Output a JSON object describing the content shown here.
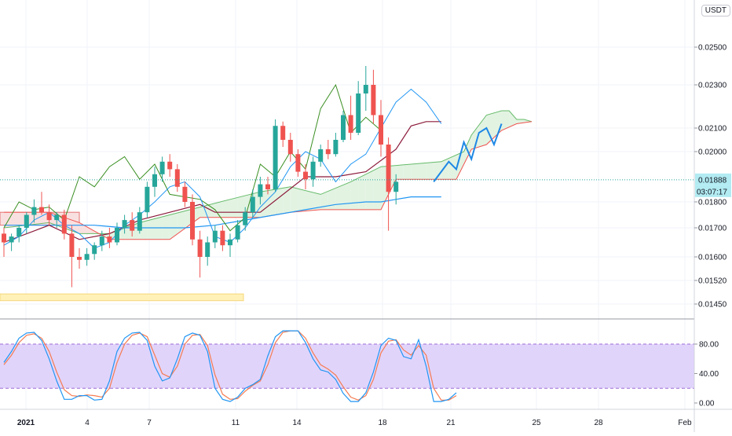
{
  "quote_currency": "USDT",
  "colors": {
    "up": "#26a69a",
    "down": "#ef5350",
    "ichimoku": "#3a8f22",
    "kijun": "#8b1a3a",
    "tenkan": "#2196f3",
    "ema": "#2196f3",
    "cloud_up": "#e2f3e2",
    "cloud_down": "#f9e0e0",
    "stoch_k": "#2196f3",
    "stoch_d": "#f57c52",
    "stoch_band": "#e1d4fb",
    "zone": "#fff1b8",
    "price_tag": "#b2ebf2"
  },
  "price_labels": {
    "current_price": "0.01888",
    "countdown": "03:07:17"
  },
  "chart_data": [
    {
      "type": "candlestick",
      "panel": "price",
      "y_axis": {
        "ticks": [
          "0.02500",
          "0.02300",
          "0.02100",
          "0.02000",
          "0.01800",
          "0.01700",
          "0.01600",
          "0.01520",
          "0.01450"
        ],
        "ylim": [
          0.0142,
          0.0268
        ]
      },
      "x_axis": {
        "ticks": [
          "2021",
          "4",
          "7",
          "11",
          "14",
          "18",
          "21",
          "25",
          "28",
          "Feb"
        ]
      },
      "grid": true,
      "series": [
        {
          "role": "tenkan-sen",
          "points": [
            [
              0,
              0.0164
            ],
            [
              2,
              0.0167
            ],
            [
              4,
              0.0173
            ],
            [
              6,
              0.0176
            ],
            [
              8,
              0.0171
            ],
            [
              10,
              0.0168
            ],
            [
              12,
              0.0163
            ],
            [
              14,
              0.0165
            ],
            [
              16,
              0.0171
            ],
            [
              18,
              0.0175
            ],
            [
              20,
              0.018
            ],
            [
              22,
              0.0186
            ],
            [
              24,
              0.0188
            ],
            [
              26,
              0.0182
            ],
            [
              28,
              0.0167
            ],
            [
              30,
              0.0165
            ],
            [
              32,
              0.017
            ],
            [
              34,
              0.0178
            ],
            [
              36,
              0.0184
            ],
            [
              38,
              0.0194
            ],
            [
              40,
              0.02
            ],
            [
              42,
              0.0197
            ],
            [
              44,
              0.0188
            ],
            [
              46,
              0.0195
            ],
            [
              48,
              0.0199
            ],
            [
              50,
              0.021
            ],
            [
              52,
              0.0222
            ],
            [
              54,
              0.0228
            ],
            [
              56,
              0.0222
            ],
            [
              58,
              0.0212
            ]
          ]
        },
        {
          "role": "kijun-sen",
          "points": [
            [
              0,
              0.0165
            ],
            [
              6,
              0.0171
            ],
            [
              10,
              0.0166
            ],
            [
              14,
              0.0168
            ],
            [
              18,
              0.0173
            ],
            [
              22,
              0.0176
            ],
            [
              26,
              0.0179
            ],
            [
              28,
              0.0176
            ],
            [
              34,
              0.0176
            ],
            [
              40,
              0.019
            ],
            [
              44,
              0.019
            ],
            [
              48,
              0.0192
            ],
            [
              52,
              0.0201
            ],
            [
              54,
              0.0211
            ],
            [
              56,
              0.0213
            ],
            [
              58,
              0.0213
            ]
          ]
        },
        {
          "role": "chikou-span",
          "points": [
            [
              0,
              0.017
            ],
            [
              2,
              0.018
            ],
            [
              4,
              0.0177
            ],
            [
              6,
              0.0178
            ],
            [
              8,
              0.0173
            ],
            [
              10,
              0.019
            ],
            [
              12,
              0.0186
            ],
            [
              14,
              0.0194
            ],
            [
              16,
              0.0198
            ],
            [
              18,
              0.0189
            ],
            [
              20,
              0.0195
            ],
            [
              22,
              0.0183
            ],
            [
              24,
              0.0182
            ],
            [
              26,
              0.0181
            ],
            [
              28,
              0.0177
            ],
            [
              30,
              0.0169
            ],
            [
              32,
              0.0174
            ],
            [
              34,
              0.0195
            ],
            [
              36,
              0.019
            ],
            [
              38,
              0.02
            ],
            [
              40,
              0.0193
            ],
            [
              42,
              0.0219
            ],
            [
              44,
              0.023
            ],
            [
              46,
              0.0208
            ],
            [
              48,
              0.0215
            ],
            [
              50,
              0.0209
            ]
          ]
        },
        {
          "role": "moving-average",
          "points": [
            [
              0,
              0.0171
            ],
            [
              8,
              0.0171
            ],
            [
              12,
              0.0171
            ],
            [
              16,
              0.017
            ],
            [
              20,
              0.017
            ],
            [
              24,
              0.017
            ],
            [
              28,
              0.0171
            ],
            [
              32,
              0.0173
            ],
            [
              36,
              0.0175
            ],
            [
              40,
              0.0177
            ],
            [
              44,
              0.0179
            ],
            [
              48,
              0.018
            ],
            [
              50,
              0.018
            ],
            [
              52,
              0.0181
            ],
            [
              54,
              0.0182
            ],
            [
              56,
              0.0182
            ],
            [
              58,
              0.0182
            ]
          ]
        },
        {
          "role": "cloud-span-a",
          "points": [
            [
              0,
              0.017
            ],
            [
              6,
              0.0172
            ],
            [
              10,
              0.0168
            ],
            [
              14,
              0.0168
            ],
            [
              18,
              0.0172
            ],
            [
              22,
              0.0175
            ],
            [
              26,
              0.0178
            ],
            [
              30,
              0.0181
            ],
            [
              34,
              0.0184
            ],
            [
              38,
              0.0186
            ],
            [
              42,
              0.0183
            ],
            [
              46,
              0.0188
            ],
            [
              50,
              0.0194
            ],
            [
              54,
              0.0195
            ],
            [
              58,
              0.0196
            ],
            [
              61,
              0.02
            ],
            [
              62,
              0.0207
            ],
            [
              64,
              0.0216
            ],
            [
              66,
              0.0218
            ],
            [
              67,
              0.0218
            ],
            [
              68,
              0.0214
            ],
            [
              69,
              0.0214
            ],
            [
              70,
              0.0213
            ]
          ]
        },
        {
          "role": "cloud-span-b",
          "points": [
            [
              0,
              0.0176
            ],
            [
              6,
              0.0176
            ],
            [
              10,
              0.0172
            ],
            [
              14,
              0.0166
            ],
            [
              18,
              0.0166
            ],
            [
              22,
              0.0166
            ],
            [
              26,
              0.0174
            ],
            [
              30,
              0.0174
            ],
            [
              34,
              0.0174
            ],
            [
              38,
              0.0176
            ],
            [
              42,
              0.0177
            ],
            [
              46,
              0.0177
            ],
            [
              50,
              0.0177
            ],
            [
              52,
              0.0189
            ],
            [
              56,
              0.0189
            ],
            [
              58,
              0.0189
            ],
            [
              60,
              0.0189
            ],
            [
              62,
              0.0201
            ],
            [
              64,
              0.0203
            ],
            [
              66,
              0.0209
            ],
            [
              68,
              0.0212
            ],
            [
              70,
              0.0213
            ]
          ]
        },
        {
          "role": "projection",
          "points": [
            [
              57,
              0.0188
            ],
            [
              59,
              0.0196
            ],
            [
              60,
              0.0193
            ],
            [
              61,
              0.0204
            ],
            [
              62,
              0.0197
            ],
            [
              63,
              0.0208
            ],
            [
              64,
              0.021
            ],
            [
              65,
              0.0203
            ],
            [
              66,
              0.0212
            ]
          ]
        }
      ],
      "candles": [
        [
          0.0168,
          0.017,
          0.016,
          0.0165
        ],
        [
          0.0165,
          0.0168,
          0.0162,
          0.0167
        ],
        [
          0.0167,
          0.0171,
          0.0165,
          0.017
        ],
        [
          0.017,
          0.0176,
          0.0168,
          0.0175
        ],
        [
          0.0175,
          0.0181,
          0.0172,
          0.0178
        ],
        [
          0.0178,
          0.0184,
          0.0175,
          0.0176
        ],
        [
          0.0176,
          0.0179,
          0.0171,
          0.0173
        ],
        [
          0.0173,
          0.0176,
          0.017,
          0.0175
        ],
        [
          0.0175,
          0.0177,
          0.0166,
          0.0168
        ],
        [
          0.0168,
          0.0171,
          0.015,
          0.016
        ],
        [
          0.016,
          0.0163,
          0.0156,
          0.0159
        ],
        [
          0.0159,
          0.0163,
          0.0157,
          0.0161
        ],
        [
          0.0161,
          0.0165,
          0.0159,
          0.0164
        ],
        [
          0.0164,
          0.0169,
          0.0162,
          0.0167
        ],
        [
          0.0167,
          0.017,
          0.0163,
          0.0165
        ],
        [
          0.0165,
          0.0172,
          0.0164,
          0.017
        ],
        [
          0.017,
          0.0175,
          0.0168,
          0.0173
        ],
        [
          0.0173,
          0.0176,
          0.0167,
          0.0169
        ],
        [
          0.0169,
          0.0178,
          0.0168,
          0.0176
        ],
        [
          0.0176,
          0.0188,
          0.0174,
          0.0186
        ],
        [
          0.0186,
          0.0194,
          0.0182,
          0.0191
        ],
        [
          0.0191,
          0.0198,
          0.0188,
          0.0196
        ],
        [
          0.0196,
          0.0199,
          0.019,
          0.0193
        ],
        [
          0.0193,
          0.0195,
          0.0184,
          0.0186
        ],
        [
          0.0186,
          0.0188,
          0.0178,
          0.018
        ],
        [
          0.018,
          0.0183,
          0.0164,
          0.0166
        ],
        [
          0.0166,
          0.0169,
          0.0153,
          0.016
        ],
        [
          0.016,
          0.0167,
          0.0157,
          0.0165
        ],
        [
          0.0165,
          0.0171,
          0.0163,
          0.0169
        ],
        [
          0.0169,
          0.0171,
          0.0162,
          0.0164
        ],
        [
          0.0164,
          0.0168,
          0.016,
          0.0166
        ],
        [
          0.0166,
          0.0173,
          0.0165,
          0.0171
        ],
        [
          0.0171,
          0.0178,
          0.0169,
          0.0176
        ],
        [
          0.0176,
          0.0185,
          0.0174,
          0.0182
        ],
        [
          0.0182,
          0.019,
          0.0179,
          0.0187
        ],
        [
          0.0187,
          0.019,
          0.0183,
          0.0185
        ],
        [
          0.0185,
          0.0214,
          0.0184,
          0.0211
        ],
        [
          0.0211,
          0.0213,
          0.0202,
          0.0205
        ],
        [
          0.0205,
          0.0208,
          0.0196,
          0.0199
        ],
        [
          0.0199,
          0.0201,
          0.019,
          0.0192
        ],
        [
          0.0192,
          0.0195,
          0.0185,
          0.0189
        ],
        [
          0.0189,
          0.0198,
          0.0186,
          0.0196
        ],
        [
          0.0196,
          0.0203,
          0.0194,
          0.0201
        ],
        [
          0.0201,
          0.0205,
          0.0197,
          0.0199
        ],
        [
          0.0199,
          0.0208,
          0.0198,
          0.0205
        ],
        [
          0.0205,
          0.0218,
          0.0204,
          0.0216
        ],
        [
          0.0216,
          0.0225,
          0.0205,
          0.0208
        ],
        [
          0.0208,
          0.0232,
          0.0207,
          0.0226
        ],
        [
          0.0226,
          0.024,
          0.0218,
          0.023
        ],
        [
          0.023,
          0.0238,
          0.0212,
          0.0216
        ],
        [
          0.0216,
          0.0223,
          0.0198,
          0.0203
        ],
        [
          0.0203,
          0.0206,
          0.0169,
          0.0184
        ],
        [
          0.0184,
          0.0191,
          0.0179,
          0.0188
        ]
      ],
      "horizontal_zones": [
        {
          "role": "resistance-band",
          "from_index": 0,
          "to_index": 10,
          "y0": 0.0171,
          "y1": 0.0176
        },
        {
          "role": "support-zone",
          "from_index": 0,
          "to_index": 28,
          "y0": 0.0146,
          "y1": 0.0148
        }
      ]
    },
    {
      "type": "line",
      "panel": "stochastic-rsi",
      "y_axis": {
        "ticks": [
          "80.00",
          "40.00",
          "0.00"
        ],
        "ylim": [
          -3,
          103
        ]
      },
      "band": {
        "low": 20,
        "high": 80
      },
      "series": [
        {
          "role": "k-line",
          "values": [
            55,
            70,
            88,
            95,
            96,
            85,
            60,
            30,
            5,
            5,
            10,
            10,
            4,
            5,
            30,
            70,
            88,
            95,
            96,
            85,
            50,
            30,
            34,
            60,
            90,
            95,
            92,
            70,
            20,
            5,
            2,
            8,
            20,
            25,
            32,
            64,
            90,
            98,
            98,
            98,
            82,
            60,
            45,
            42,
            32,
            13,
            2,
            2,
            14,
            42,
            78,
            88,
            85,
            63,
            60,
            86,
            50,
            2,
            2,
            5,
            14
          ]
        },
        {
          "role": "d-line",
          "values": [
            52,
            65,
            82,
            92,
            94,
            88,
            70,
            42,
            18,
            10,
            9,
            11,
            10,
            8,
            20,
            55,
            80,
            92,
            95,
            90,
            65,
            40,
            35,
            50,
            80,
            92,
            93,
            78,
            38,
            12,
            5,
            6,
            16,
            24,
            30,
            52,
            82,
            96,
            98,
            98,
            88,
            68,
            52,
            46,
            38,
            22,
            8,
            4,
            10,
            32,
            68,
            84,
            86,
            72,
            65,
            78,
            65,
            20,
            4,
            4,
            10
          ]
        }
      ]
    }
  ]
}
